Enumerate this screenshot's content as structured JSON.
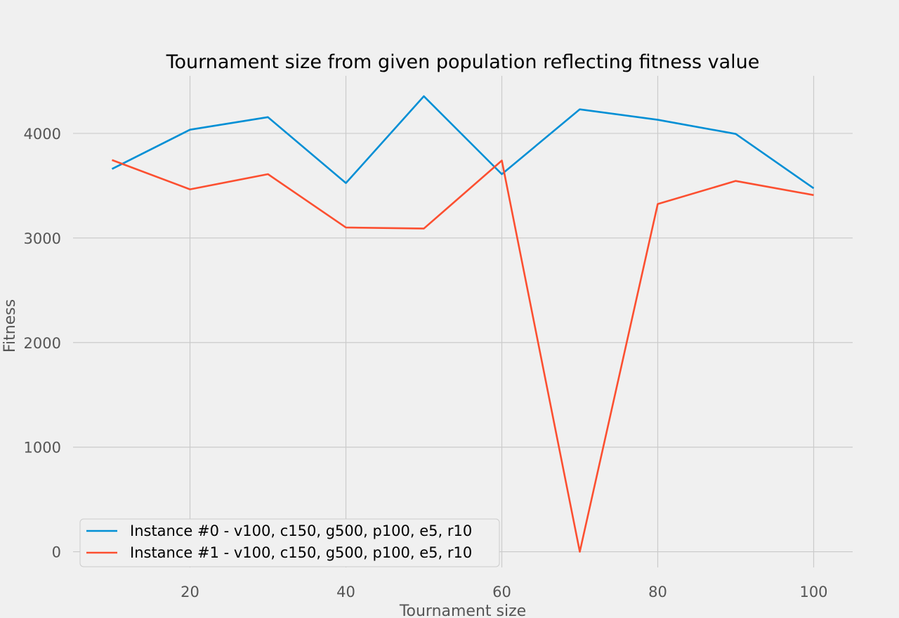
{
  "chart_data": {
    "type": "line",
    "title": "Tournament size from given population reflecting fitness value",
    "xlabel": "Tournament size",
    "ylabel": "Fitness",
    "x": [
      10,
      20,
      30,
      40,
      50,
      60,
      70,
      80,
      90,
      100
    ],
    "xlim": [
      5,
      105
    ],
    "ylim": [
      -150,
      4550
    ],
    "xticks": [
      20,
      40,
      60,
      80,
      100
    ],
    "yticks": [
      0,
      1000,
      2000,
      3000,
      4000
    ],
    "grid": true,
    "legend_position": "lower-left",
    "series": [
      {
        "name": "Instance #0 - v100, c150, g500, p100, e5, r10",
        "color": "#008fd5",
        "values": [
          3660,
          4035,
          4155,
          3525,
          4355,
          3610,
          4230,
          4130,
          3995,
          3475
        ]
      },
      {
        "name": "Instance #1 - v100, c150, g500, p100, e5, r10",
        "color": "#fc4f30",
        "values": [
          3745,
          3465,
          3610,
          3100,
          3090,
          3740,
          0,
          3325,
          3545,
          3410
        ]
      }
    ]
  }
}
